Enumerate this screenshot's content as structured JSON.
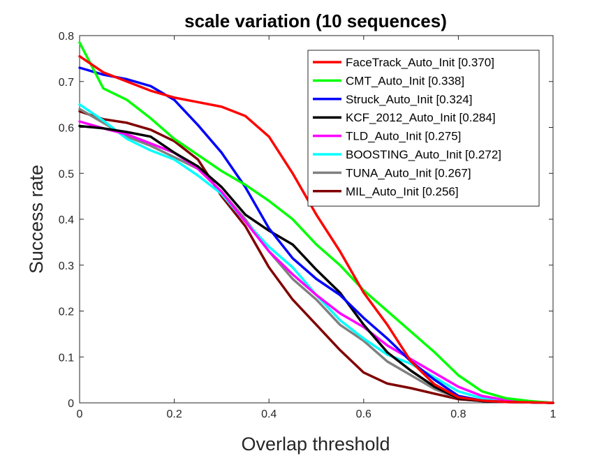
{
  "chart_data": {
    "type": "line",
    "title": "scale variation (10 sequences)",
    "xlabel": "Overlap threshold",
    "ylabel": "Success rate",
    "xlim": [
      0,
      1
    ],
    "ylim": [
      0,
      0.8
    ],
    "xticks": [
      "0",
      "0.2",
      "0.4",
      "0.6",
      "0.8",
      "1"
    ],
    "xtick_values": [
      0,
      0.2,
      0.4,
      0.6,
      0.8,
      1
    ],
    "yticks": [
      "0",
      "0.1",
      "0.2",
      "0.3",
      "0.4",
      "0.5",
      "0.6",
      "0.7",
      "0.8"
    ],
    "ytick_values": [
      0,
      0.1,
      0.2,
      0.3,
      0.4,
      0.5,
      0.6,
      0.7,
      0.8
    ],
    "legend_position": "top-right",
    "x": [
      0,
      0.05,
      0.1,
      0.15,
      0.2,
      0.25,
      0.3,
      0.35,
      0.4,
      0.45,
      0.5,
      0.55,
      0.6,
      0.65,
      0.7,
      0.75,
      0.8,
      0.85,
      0.9,
      0.95,
      1
    ],
    "series": [
      {
        "name": "FaceTrack_Auto_Init [0.370]",
        "color": "#ff0000",
        "values": [
          0.755,
          0.72,
          0.7,
          0.68,
          0.665,
          0.655,
          0.645,
          0.625,
          0.58,
          0.5,
          0.41,
          0.33,
          0.24,
          0.17,
          0.09,
          0.04,
          0.012,
          0.005,
          0.002,
          0.001,
          0.0
        ]
      },
      {
        "name": "CMT_Auto_Init [0.338]",
        "color": "#00ff00",
        "values": [
          0.785,
          0.685,
          0.66,
          0.62,
          0.575,
          0.54,
          0.505,
          0.475,
          0.44,
          0.4,
          0.345,
          0.3,
          0.245,
          0.2,
          0.155,
          0.11,
          0.06,
          0.025,
          0.01,
          0.004,
          0.0
        ]
      },
      {
        "name": "Struck_Auto_Init [0.324]",
        "color": "#0000ff",
        "values": [
          0.73,
          0.715,
          0.705,
          0.69,
          0.66,
          0.605,
          0.545,
          0.47,
          0.38,
          0.315,
          0.27,
          0.235,
          0.185,
          0.14,
          0.09,
          0.05,
          0.015,
          0.005,
          0.002,
          0.001,
          0.0
        ]
      },
      {
        "name": "KCF_2012_Auto_Init [0.284]",
        "color": "#000000",
        "values": [
          0.603,
          0.598,
          0.59,
          0.58,
          0.545,
          0.515,
          0.47,
          0.41,
          0.375,
          0.345,
          0.29,
          0.24,
          0.17,
          0.11,
          0.07,
          0.035,
          0.01,
          0.004,
          0.002,
          0.001,
          0.0
        ]
      },
      {
        "name": "TLD_Auto_Init [0.275]",
        "color": "#ff00ff",
        "values": [
          0.613,
          0.598,
          0.585,
          0.565,
          0.545,
          0.51,
          0.46,
          0.395,
          0.33,
          0.28,
          0.235,
          0.195,
          0.165,
          0.125,
          0.095,
          0.065,
          0.035,
          0.015,
          0.006,
          0.002,
          0.0
        ]
      },
      {
        "name": "BOOSTING_Auto_Init [0.272]",
        "color": "#00ffff",
        "values": [
          0.65,
          0.615,
          0.575,
          0.55,
          0.53,
          0.495,
          0.455,
          0.395,
          0.34,
          0.295,
          0.235,
          0.18,
          0.14,
          0.105,
          0.085,
          0.055,
          0.025,
          0.01,
          0.004,
          0.002,
          0.0
        ]
      },
      {
        "name": "TUNA_Auto_Init [0.267]",
        "color": "#808080",
        "values": [
          0.64,
          0.61,
          0.58,
          0.56,
          0.535,
          0.51,
          0.46,
          0.4,
          0.33,
          0.27,
          0.225,
          0.17,
          0.135,
          0.09,
          0.06,
          0.03,
          0.01,
          0.004,
          0.002,
          0.001,
          0.0
        ]
      },
      {
        "name": "MIL_Auto_Init [0.256]",
        "color": "#800000",
        "values": [
          0.635,
          0.618,
          0.61,
          0.595,
          0.57,
          0.53,
          0.45,
          0.385,
          0.295,
          0.225,
          0.17,
          0.115,
          0.066,
          0.042,
          0.032,
          0.02,
          0.008,
          0.004,
          0.002,
          0.001,
          0.0
        ]
      }
    ]
  }
}
